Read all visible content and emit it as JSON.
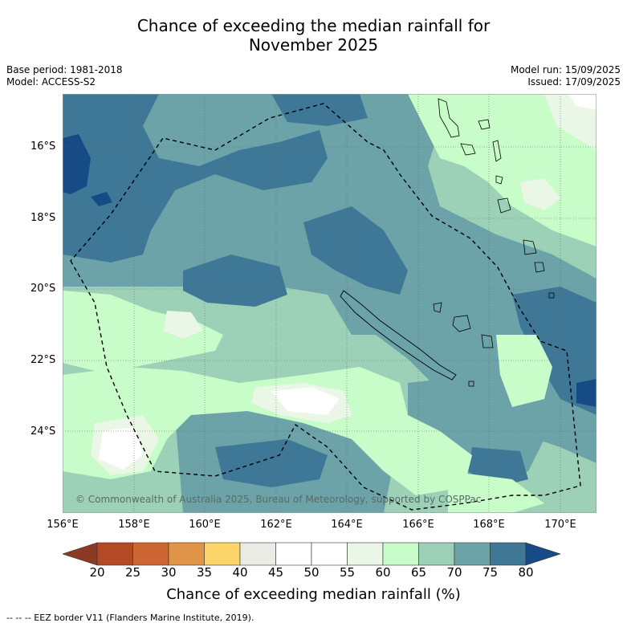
{
  "title_line1": "Chance of exceeding the median rainfall for",
  "title_line2": "November 2025",
  "meta": {
    "base_period": "Base period: 1981-2018",
    "model": "Model: ACCESS-S2",
    "model_run": "Model run: 15/09/2025",
    "issued": "Issued: 17/09/2025"
  },
  "map": {
    "lat_labels": [
      "16°S",
      "18°S",
      "20°S",
      "22°S",
      "24°S"
    ],
    "lon_labels": [
      "156°E",
      "158°E",
      "160°E",
      "162°E",
      "164°E",
      "166°E",
      "168°E",
      "170°E"
    ],
    "copyright": "© Commonwealth of Australia 2025, Bureau of Meteorology, supported by COSPPac"
  },
  "colorbar": {
    "ticks": [
      "20",
      "25",
      "30",
      "35",
      "40",
      "45",
      "50",
      "55",
      "60",
      "65",
      "70",
      "75",
      "80"
    ],
    "colors": [
      "#8c3a25",
      "#b34a26",
      "#cc6633",
      "#e09447",
      "#fdd46a",
      "#ebebe6",
      "#ffffff",
      "#ffffff",
      "#eaf6e6",
      "#c8fcc8",
      "#9cd1b7",
      "#6ba3a8",
      "#3f7797",
      "#174b86"
    ],
    "label": "Chance of exceeding median rainfall (%)"
  },
  "footnote": "-- -- -- EEZ border V11 (Flanders Marine Institute, 2019)."
}
